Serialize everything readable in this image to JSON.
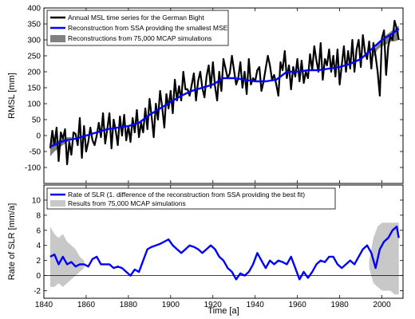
{
  "chart_data": [
    {
      "type": "line",
      "title": "",
      "xlabel": "",
      "ylabel": "RMSL [mm]",
      "xlim": [
        1840,
        2010
      ],
      "ylim": [
        -150,
        400
      ],
      "xticks": [
        1840,
        1860,
        1880,
        1900,
        1920,
        1940,
        1960,
        1980,
        2000
      ],
      "yticks": [
        -100,
        -50,
        0,
        50,
        100,
        150,
        200,
        250,
        300,
        350,
        400
      ],
      "grid": false,
      "legend_position": "top-left",
      "legend": [
        {
          "label": "Annual MSL time series for the German Bight",
          "color": "#000000",
          "kind": "line"
        },
        {
          "label": "Reconstruction from SSA providing the smallest MSE",
          "color": "#0000ff",
          "kind": "line"
        },
        {
          "label": "Reconstructions from 75,000 MCAP simulations",
          "color": "#808080",
          "kind": "patch"
        }
      ],
      "series": [
        {
          "name": "Annual MSL time series for the German Bight",
          "color": "#000000",
          "x": [
            1843,
            1844,
            1845,
            1846,
            1847,
            1848,
            1849,
            1850,
            1851,
            1852,
            1853,
            1854,
            1855,
            1856,
            1857,
            1858,
            1859,
            1860,
            1861,
            1862,
            1863,
            1864,
            1865,
            1866,
            1867,
            1868,
            1869,
            1870,
            1871,
            1872,
            1873,
            1874,
            1875,
            1876,
            1877,
            1878,
            1879,
            1880,
            1881,
            1882,
            1883,
            1884,
            1885,
            1886,
            1887,
            1888,
            1889,
            1890,
            1891,
            1892,
            1893,
            1894,
            1895,
            1896,
            1897,
            1898,
            1899,
            1900,
            1901,
            1902,
            1903,
            1904,
            1905,
            1906,
            1907,
            1908,
            1909,
            1910,
            1911,
            1912,
            1913,
            1914,
            1915,
            1916,
            1917,
            1918,
            1919,
            1920,
            1921,
            1922,
            1923,
            1924,
            1925,
            1926,
            1927,
            1928,
            1929,
            1930,
            1931,
            1932,
            1933,
            1934,
            1935,
            1936,
            1937,
            1938,
            1939,
            1940,
            1941,
            1942,
            1943,
            1944,
            1945,
            1946,
            1947,
            1948,
            1949,
            1950,
            1951,
            1952,
            1953,
            1954,
            1955,
            1956,
            1957,
            1958,
            1959,
            1960,
            1961,
            1962,
            1963,
            1964,
            1965,
            1966,
            1967,
            1968,
            1969,
            1970,
            1971,
            1972,
            1973,
            1974,
            1975,
            1976,
            1977,
            1978,
            1979,
            1980,
            1981,
            1982,
            1983,
            1984,
            1985,
            1986,
            1987,
            1988,
            1989,
            1990,
            1991,
            1992,
            1993,
            1994,
            1995,
            1996,
            1997,
            1998,
            1999,
            2000,
            2001,
            2002,
            2003,
            2004,
            2005,
            2006,
            2007,
            2008
          ],
          "values": [
            -40,
            15,
            -30,
            25,
            -80,
            10,
            -10,
            20,
            -90,
            -20,
            -60,
            10,
            5,
            -30,
            55,
            -70,
            30,
            -50,
            -20,
            25,
            -15,
            -30,
            0,
            40,
            -5,
            70,
            -25,
            20,
            70,
            -40,
            50,
            15,
            -30,
            60,
            0,
            65,
            -15,
            30,
            -20,
            55,
            10,
            80,
            -5,
            40,
            10,
            85,
            20,
            115,
            60,
            -5,
            100,
            50,
            140,
            90,
            25,
            130,
            85,
            140,
            70,
            175,
            110,
            155,
            110,
            200,
            145,
            145,
            125,
            160,
            195,
            110,
            170,
            200,
            150,
            120,
            185,
            220,
            150,
            230,
            155,
            110,
            200,
            140,
            240,
            210,
            180,
            195,
            250,
            205,
            160,
            180,
            230,
            150,
            200,
            130,
            240,
            160,
            180,
            170,
            205,
            215,
            140,
            170,
            210,
            250,
            220,
            175,
            190,
            160,
            125,
            230,
            205,
            265,
            180,
            220,
            145,
            215,
            185,
            240,
            170,
            235,
            165,
            200,
            180,
            255,
            205,
            280,
            235,
            200,
            290,
            175,
            240,
            220,
            270,
            200,
            250,
            185,
            270,
            160,
            220,
            280,
            200,
            265,
            210,
            300,
            200,
            270,
            300,
            215,
            315,
            260,
            240,
            295,
            210,
            290,
            250,
            200,
            125,
            305,
            330,
            190,
            280,
            310,
            300,
            360,
            335,
            300
          ]
        },
        {
          "name": "Reconstruction from SSA providing the smallest MSE",
          "color": "#0000ff",
          "x": [
            1843,
            1850,
            1855,
            1860,
            1865,
            1870,
            1875,
            1880,
            1885,
            1890,
            1895,
            1900,
            1905,
            1910,
            1915,
            1920,
            1925,
            1930,
            1935,
            1940,
            1945,
            1950,
            1955,
            1960,
            1965,
            1970,
            1975,
            1980,
            1985,
            1990,
            1995,
            2000,
            2005,
            2008
          ],
          "values": [
            -35,
            -15,
            -10,
            0,
            10,
            20,
            25,
            30,
            40,
            65,
            85,
            105,
            125,
            140,
            150,
            160,
            180,
            180,
            175,
            170,
            170,
            175,
            200,
            200,
            205,
            205,
            210,
            215,
            225,
            240,
            270,
            300,
            320,
            335
          ]
        }
      ],
      "band": {
        "name": "Reconstructions from 75,000 MCAP simulations",
        "color": "#808080",
        "start": {
          "x": [
            1843,
            1845,
            1847,
            1849,
            1851,
            1853
          ],
          "upper": [
            -10,
            -15,
            -15,
            -10,
            -5,
            -5
          ],
          "lower": [
            -65,
            -50,
            -40,
            -30,
            -20,
            -15
          ]
        },
        "end": {
          "x": [
            1996,
            1998,
            2000,
            2002,
            2004,
            2006,
            2008
          ],
          "upper": [
            265,
            285,
            300,
            315,
            325,
            335,
            345
          ],
          "lower": [
            245,
            270,
            280,
            285,
            295,
            295,
            300
          ]
        }
      }
    },
    {
      "type": "line",
      "title": "",
      "xlabel": "Time [a]",
      "ylabel": "Rate of SLR [mm/a]",
      "xlim": [
        1840,
        2010
      ],
      "ylim": [
        -3,
        12
      ],
      "xticks": [
        1840,
        1860,
        1880,
        1900,
        1920,
        1940,
        1960,
        1980,
        2000
      ],
      "yticks": [
        -2,
        0,
        2,
        4,
        6,
        8,
        10
      ],
      "zero_line": true,
      "grid": false,
      "legend_position": "top-left",
      "legend": [
        {
          "label": "Rate of SLR (1. difference of the reconstruction from SSA providing the best fit)",
          "color": "#0000ff",
          "kind": "line"
        },
        {
          "label": "Results from 75,000 MCAP simulations",
          "color": "#c8c8c8",
          "kind": "patch"
        }
      ],
      "series": [
        {
          "name": "Rate of SLR (1. difference of the reconstruction from SSA providing the best fit)",
          "color": "#0000ff",
          "x": [
            1843,
            1845,
            1847,
            1849,
            1851,
            1853,
            1855,
            1857,
            1859,
            1861,
            1863,
            1865,
            1867,
            1869,
            1871,
            1873,
            1875,
            1877,
            1879,
            1881,
            1883,
            1885,
            1887,
            1889,
            1891,
            1893,
            1895,
            1897,
            1899,
            1901,
            1903,
            1905,
            1907,
            1909,
            1911,
            1913,
            1915,
            1917,
            1919,
            1921,
            1923,
            1925,
            1927,
            1929,
            1931,
            1933,
            1935,
            1937,
            1939,
            1941,
            1943,
            1945,
            1947,
            1949,
            1951,
            1953,
            1955,
            1957,
            1959,
            1961,
            1963,
            1965,
            1967,
            1969,
            1971,
            1973,
            1975,
            1977,
            1979,
            1981,
            1983,
            1985,
            1987,
            1989,
            1991,
            1993,
            1995,
            1997,
            1999,
            2001,
            2003,
            2005,
            2007,
            2008
          ],
          "values": [
            2.5,
            2.8,
            1.5,
            2.5,
            1.5,
            1.8,
            1.2,
            1.5,
            1.5,
            1.2,
            2.2,
            2.5,
            1.5,
            1.5,
            1.5,
            1.0,
            1.2,
            1.0,
            0.5,
            0.0,
            0.8,
            0.5,
            2.0,
            3.5,
            3.8,
            4.0,
            4.2,
            4.5,
            4.8,
            4.0,
            3.5,
            3.0,
            3.5,
            4.0,
            3.8,
            3.5,
            3.0,
            3.5,
            4.0,
            3.5,
            2.5,
            2.0,
            1.0,
            0.5,
            -0.5,
            0.3,
            0.0,
            0.5,
            1.5,
            3.0,
            2.0,
            1.0,
            2.0,
            1.5,
            2.0,
            1.8,
            1.5,
            2.5,
            1.0,
            -0.5,
            0.5,
            -0.3,
            0.5,
            1.5,
            2.0,
            1.8,
            2.5,
            2.5,
            1.5,
            1.0,
            1.5,
            2.0,
            1.5,
            2.5,
            3.5,
            4.0,
            3.0,
            1.0,
            3.5,
            4.5,
            5.0,
            6.0,
            6.5,
            5.0
          ]
        }
      ],
      "band": {
        "name": "Results from 75,000 MCAP simulations",
        "color": "#c8c8c8",
        "start": {
          "x": [
            1843,
            1845,
            1847,
            1849,
            1851,
            1853,
            1855,
            1857,
            1859
          ],
          "upper": [
            6.5,
            5.5,
            5.0,
            5.5,
            4.5,
            4.0,
            3.5,
            2.5,
            2.0
          ],
          "lower": [
            -1.5,
            -1.5,
            -1.0,
            -1.5,
            -1.0,
            -0.5,
            0.0,
            0.5,
            1.0
          ]
        },
        "end": {
          "x": [
            1994,
            1996,
            1998,
            2000,
            2002,
            2004,
            2006,
            2008
          ],
          "upper": [
            2.0,
            5.0,
            6.5,
            7.0,
            7.0,
            7.0,
            7.0,
            7.0
          ],
          "lower": [
            1.0,
            -1.0,
            -1.5,
            -2.0,
            -2.0,
            -2.0,
            -2.5,
            -2.5
          ]
        }
      }
    }
  ]
}
